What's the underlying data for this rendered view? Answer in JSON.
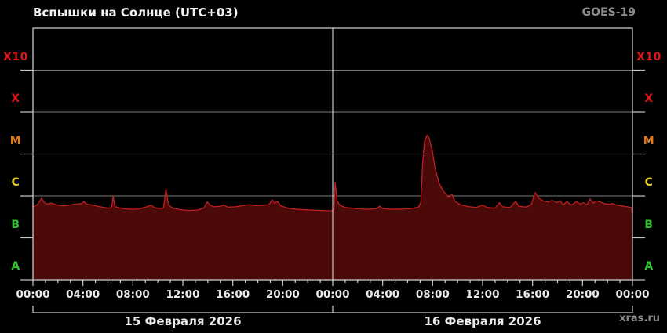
{
  "header": {
    "title": "Вспышки на Солнце (UTC+03)",
    "satellite": "GOES-19"
  },
  "footer": {
    "watermark": "xras.ru"
  },
  "colors": {
    "background": "#000000",
    "frame": "#c8c8c8",
    "grid": "#7d7d7d",
    "curve_stroke": "#c12020",
    "curve_fill": "#4c0909",
    "text_primary": "#eaeaea",
    "text_muted": "#8d8d8d"
  },
  "chart_data": {
    "type": "area",
    "title": "Вспышки на Солнце (UTC+03)",
    "subtitle": "GOES-19 solar X-ray flux, two days",
    "x_unit": "hours from 15 Feb 2026 00:00 (UTC+03)",
    "x_range": [
      0,
      48
    ],
    "y_scale": "log10",
    "y_unit": "W/m^2",
    "y_range": [
      1e-08,
      0.01
    ],
    "grid": "on",
    "bands": [
      {
        "label": "X10",
        "color": "#e01515",
        "range": [
          0.001,
          0.01
        ]
      },
      {
        "label": "X",
        "color": "#e01515",
        "range": [
          0.0001,
          0.001
        ]
      },
      {
        "label": "M",
        "color": "#e07a1a",
        "range": [
          1e-05,
          0.0001
        ]
      },
      {
        "label": "C",
        "color": "#e0cf1d",
        "range": [
          1e-06,
          1e-05
        ]
      },
      {
        "label": "B",
        "color": "#2ec42e",
        "range": [
          1e-07,
          1e-06
        ]
      },
      {
        "label": "A",
        "color": "#2ec42e",
        "range": [
          1e-08,
          1e-07
        ]
      }
    ],
    "x_ticks": [
      "00:00",
      "04:00",
      "08:00",
      "12:00",
      "16:00",
      "20:00",
      "00:00",
      "04:00",
      "08:00",
      "12:00",
      "16:00",
      "20:00",
      "00:00"
    ],
    "date_labels": [
      "15 Февраля 2026",
      "16 Февраля 2026"
    ],
    "notable_peaks": [
      {
        "t_hours": 6.4,
        "class": "C1.0"
      },
      {
        "t_hours": 10.65,
        "class": "C1.5"
      },
      {
        "t_hours": 24.2,
        "class": "C2.1"
      },
      {
        "t_hours": 31.55,
        "class": "M2.8"
      },
      {
        "t_hours": 40.2,
        "class": "C1.2"
      }
    ],
    "series": [
      {
        "name": "X-ray flux",
        "points": [
          [
            0,
            5.5e-07
          ],
          [
            0.35,
            6.2e-07
          ],
          [
            0.55,
            7.6e-07
          ],
          [
            0.7,
            8.8e-07
          ],
          [
            0.85,
            7.2e-07
          ],
          [
            1.1,
            6.4e-07
          ],
          [
            1.5,
            6.7e-07
          ],
          [
            1.9,
            6.1e-07
          ],
          [
            2.4,
            5.8e-07
          ],
          [
            3.0,
            6.1e-07
          ],
          [
            3.5,
            6.4e-07
          ],
          [
            3.9,
            6.6e-07
          ],
          [
            4.1,
            7.3e-07
          ],
          [
            4.3,
            6.4e-07
          ],
          [
            4.8,
            6e-07
          ],
          [
            5.4,
            5.5e-07
          ],
          [
            6.0,
            5.1e-07
          ],
          [
            6.3,
            5.2e-07
          ],
          [
            6.42,
            1e-06
          ],
          [
            6.55,
            5.6e-07
          ],
          [
            6.9,
            5.2e-07
          ],
          [
            7.5,
            4.9e-07
          ],
          [
            8.2,
            4.8e-07
          ],
          [
            8.7,
            5.1e-07
          ],
          [
            9.2,
            5.6e-07
          ],
          [
            9.45,
            6.1e-07
          ],
          [
            9.7,
            5.3e-07
          ],
          [
            10.1,
            5e-07
          ],
          [
            10.45,
            5.2e-07
          ],
          [
            10.65,
            1.45e-06
          ],
          [
            10.85,
            6.1e-07
          ],
          [
            11.2,
            5.1e-07
          ],
          [
            11.8,
            4.7e-07
          ],
          [
            12.5,
            4.5e-07
          ],
          [
            13.2,
            4.6e-07
          ],
          [
            13.7,
            5.2e-07
          ],
          [
            13.95,
            7.2e-07
          ],
          [
            14.2,
            6e-07
          ],
          [
            14.5,
            5.5e-07
          ],
          [
            15.0,
            5.7e-07
          ],
          [
            15.25,
            6.1e-07
          ],
          [
            15.6,
            5.4e-07
          ],
          [
            16.2,
            5.5e-07
          ],
          [
            16.8,
            5.9e-07
          ],
          [
            17.3,
            6.2e-07
          ],
          [
            17.8,
            5.9e-07
          ],
          [
            18.4,
            6e-07
          ],
          [
            18.9,
            6.2e-07
          ],
          [
            19.15,
            8.1e-07
          ],
          [
            19.35,
            6.6e-07
          ],
          [
            19.55,
            7.5e-07
          ],
          [
            19.85,
            5.8e-07
          ],
          [
            20.4,
            5.1e-07
          ],
          [
            21.2,
            4.8e-07
          ],
          [
            22.2,
            4.6e-07
          ],
          [
            23.2,
            4.5e-07
          ],
          [
            23.9,
            4.4e-07
          ],
          [
            24.1,
            4.8e-07
          ],
          [
            24.2,
            2.1e-06
          ],
          [
            24.35,
            7.8e-07
          ],
          [
            24.55,
            6.1e-07
          ],
          [
            25.0,
            5.3e-07
          ],
          [
            25.8,
            5e-07
          ],
          [
            26.8,
            4.8e-07
          ],
          [
            27.55,
            5e-07
          ],
          [
            27.75,
            5.7e-07
          ],
          [
            28.0,
            5e-07
          ],
          [
            28.8,
            4.8e-07
          ],
          [
            29.8,
            4.9e-07
          ],
          [
            30.5,
            5.1e-07
          ],
          [
            30.9,
            5.5e-07
          ],
          [
            31.05,
            7e-07
          ],
          [
            31.2,
            6e-06
          ],
          [
            31.35,
            2e-05
          ],
          [
            31.55,
            2.8e-05
          ],
          [
            31.7,
            2.45e-05
          ],
          [
            31.95,
            1.3e-05
          ],
          [
            32.2,
            4.5e-06
          ],
          [
            32.55,
            1.9e-06
          ],
          [
            32.9,
            1.25e-06
          ],
          [
            33.3,
            9.2e-07
          ],
          [
            33.55,
            1.08e-06
          ],
          [
            33.8,
            7.4e-07
          ],
          [
            34.2,
            6.2e-07
          ],
          [
            34.8,
            5.6e-07
          ],
          [
            35.5,
            5.3e-07
          ],
          [
            36.0,
            6.1e-07
          ],
          [
            36.35,
            5.3e-07
          ],
          [
            37.0,
            5.1e-07
          ],
          [
            37.35,
            6.9e-07
          ],
          [
            37.6,
            5.5e-07
          ],
          [
            38.2,
            5.3e-07
          ],
          [
            38.65,
            7.4e-07
          ],
          [
            38.9,
            5.7e-07
          ],
          [
            39.5,
            5.4e-07
          ],
          [
            39.9,
            6.3e-07
          ],
          [
            40.2,
            1.2e-06
          ],
          [
            40.5,
            8.8e-07
          ],
          [
            40.85,
            7.6e-07
          ],
          [
            41.2,
            7.2e-07
          ],
          [
            41.6,
            7.8e-07
          ],
          [
            41.95,
            6.9e-07
          ],
          [
            42.2,
            7.7e-07
          ],
          [
            42.45,
            6.1e-07
          ],
          [
            42.75,
            7.4e-07
          ],
          [
            43.1,
            6e-07
          ],
          [
            43.5,
            7.4e-07
          ],
          [
            43.8,
            6.4e-07
          ],
          [
            44.1,
            6.9e-07
          ],
          [
            44.35,
            6.1e-07
          ],
          [
            44.6,
            8.5e-07
          ],
          [
            44.85,
            6.7e-07
          ],
          [
            45.1,
            7.7e-07
          ],
          [
            45.45,
            7.1e-07
          ],
          [
            45.8,
            6.5e-07
          ],
          [
            46.1,
            6.3e-07
          ],
          [
            46.4,
            6.6e-07
          ],
          [
            46.7,
            6.1e-07
          ],
          [
            47.1,
            5.8e-07
          ],
          [
            47.6,
            5.5e-07
          ],
          [
            47.9,
            5.3e-07
          ],
          [
            48.0,
            3.5e-07
          ]
        ]
      }
    ]
  }
}
